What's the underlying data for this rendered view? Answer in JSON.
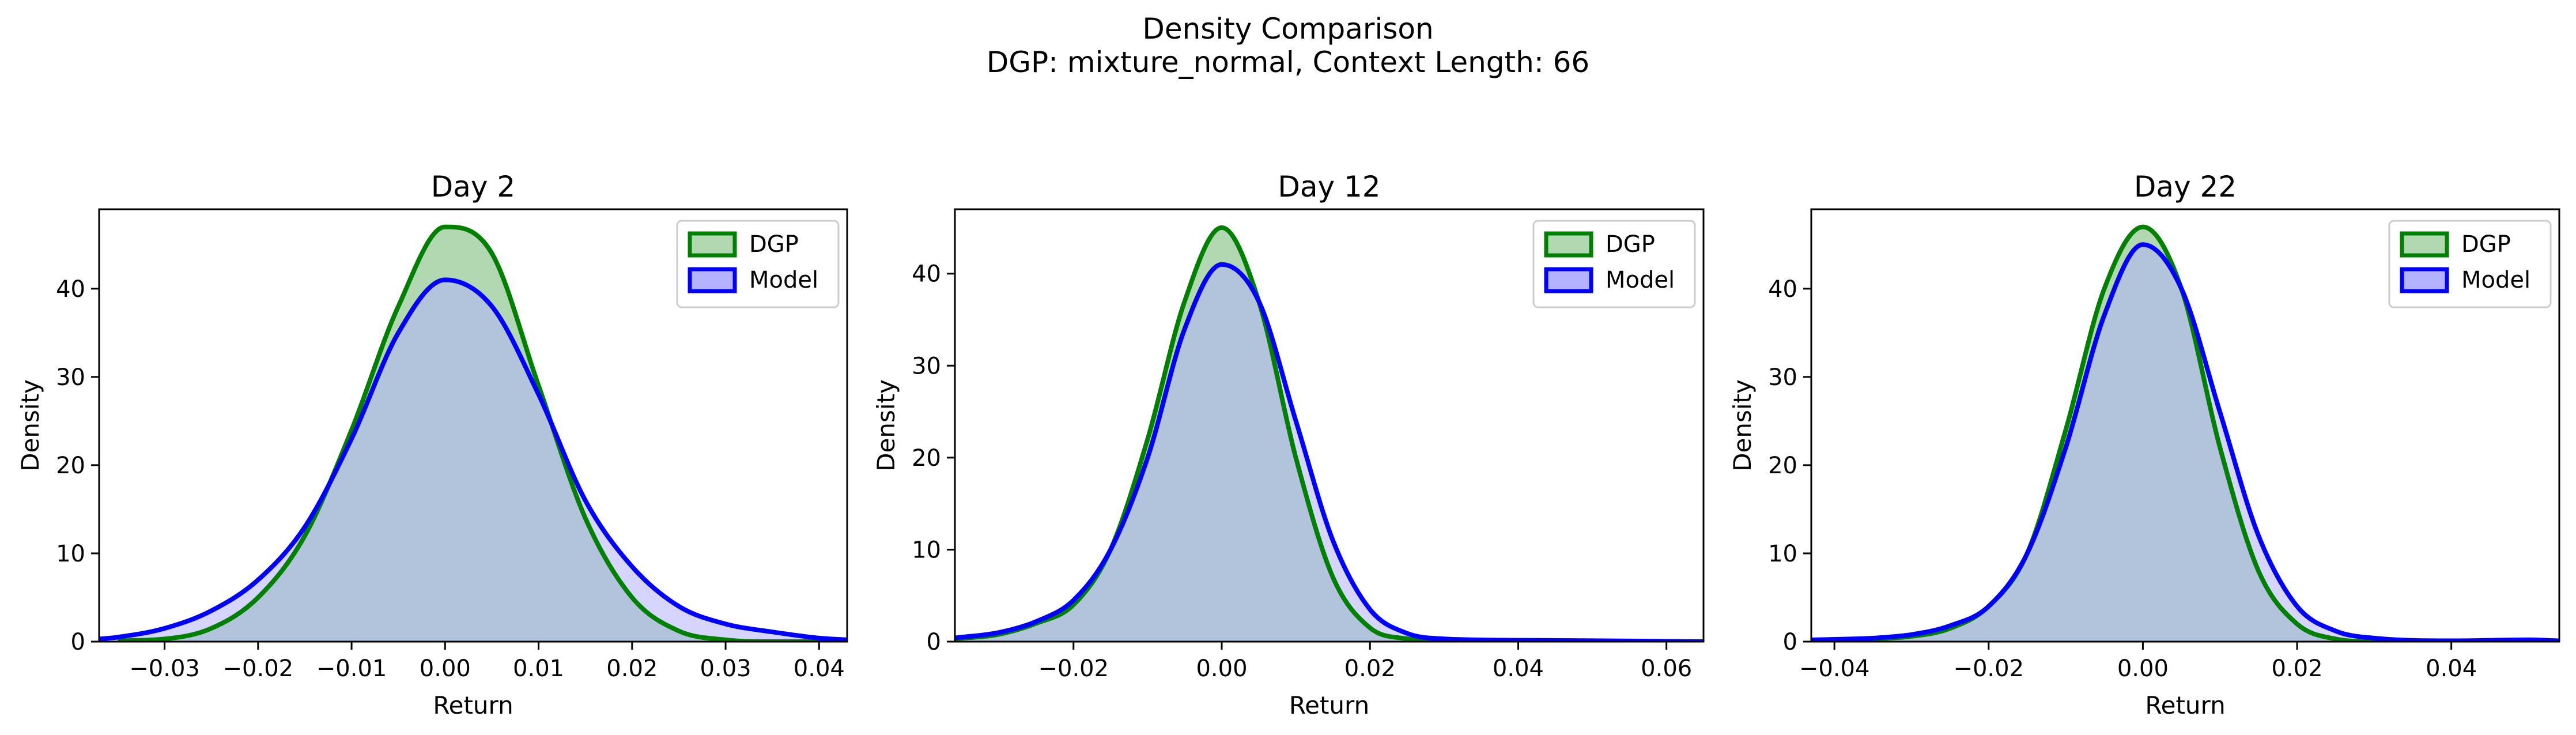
{
  "figure": {
    "title_line1": "Density Comparison",
    "title_line2": "DGP: mixture_normal, Context Length: 66"
  },
  "colors": {
    "dgp_line": "#008000",
    "dgp_fill": "#b2d8b2",
    "model_line": "#0000ff",
    "model_fill": "#b3b3ff",
    "overlap_fill": "#7d99c8"
  },
  "chart_data": [
    {
      "type": "area",
      "title": "Day 2",
      "xlabel": "Return",
      "ylabel": "Density",
      "xlim": [
        -0.037,
        0.043
      ],
      "ylim": [
        0,
        49
      ],
      "xticks": [
        -0.03,
        -0.02,
        -0.01,
        0.0,
        0.01,
        0.02,
        0.03,
        0.04
      ],
      "xtick_labels": [
        "−0.03",
        "−0.02",
        "−0.01",
        "0.00",
        "0.01",
        "0.02",
        "0.03",
        "0.04"
      ],
      "yticks": [
        0,
        10,
        20,
        30,
        40
      ],
      "ytick_labels": [
        "0",
        "10",
        "20",
        "30",
        "40"
      ],
      "legend": {
        "position": "top-right",
        "entries": [
          "DGP",
          "Model"
        ]
      },
      "series": [
        {
          "name": "DGP",
          "x": [
            -0.035,
            -0.03,
            -0.025,
            -0.02,
            -0.015,
            -0.01,
            -0.005,
            0.0,
            0.005,
            0.01,
            0.015,
            0.02,
            0.025,
            0.03,
            0.035,
            0.04,
            0.043
          ],
          "values": [
            0.1,
            0.3,
            1.5,
            5.0,
            12.0,
            24.0,
            38.0,
            47.0,
            44.0,
            29.0,
            14.0,
            5.0,
            1.2,
            0.2,
            0.0,
            0.0,
            0.0
          ]
        },
        {
          "name": "Model",
          "x": [
            -0.037,
            -0.035,
            -0.03,
            -0.025,
            -0.02,
            -0.015,
            -0.01,
            -0.005,
            0.0,
            0.005,
            0.01,
            0.015,
            0.02,
            0.025,
            0.03,
            0.035,
            0.04,
            0.043
          ],
          "values": [
            0.3,
            0.5,
            1.5,
            3.5,
            7.0,
            13.0,
            23.0,
            35.0,
            41.0,
            38.0,
            28.0,
            16.0,
            8.5,
            4.0,
            2.0,
            1.1,
            0.4,
            0.2
          ]
        }
      ]
    },
    {
      "type": "area",
      "title": "Day 12",
      "xlabel": "Return",
      "ylabel": "Density",
      "xlim": [
        -0.036,
        0.065
      ],
      "ylim": [
        0,
        47
      ],
      "xticks": [
        -0.02,
        0.0,
        0.02,
        0.04,
        0.06
      ],
      "xtick_labels": [
        "−0.02",
        "0.00",
        "0.02",
        "0.04",
        "0.06"
      ],
      "yticks": [
        0,
        10,
        20,
        30,
        40
      ],
      "ytick_labels": [
        "0",
        "10",
        "20",
        "30",
        "40"
      ],
      "legend": {
        "position": "top-right",
        "entries": [
          "DGP",
          "Model"
        ]
      },
      "series": [
        {
          "name": "DGP",
          "x": [
            -0.036,
            -0.03,
            -0.025,
            -0.02,
            -0.015,
            -0.01,
            -0.005,
            0.0,
            0.005,
            0.01,
            0.015,
            0.02,
            0.025,
            0.03,
            0.04,
            0.05,
            0.065
          ],
          "values": [
            0.3,
            0.8,
            2.0,
            4.0,
            10.0,
            22.0,
            37.0,
            45.0,
            37.0,
            20.0,
            7.0,
            1.5,
            0.3,
            0.0,
            0.0,
            0.0,
            0.0
          ]
        },
        {
          "name": "Model",
          "x": [
            -0.036,
            -0.03,
            -0.025,
            -0.02,
            -0.015,
            -0.01,
            -0.005,
            0.0,
            0.005,
            0.01,
            0.015,
            0.02,
            0.025,
            0.03,
            0.04,
            0.05,
            0.065
          ],
          "values": [
            0.4,
            1.0,
            2.2,
            4.5,
            10.0,
            20.0,
            34.0,
            41.0,
            37.0,
            24.0,
            11.0,
            3.5,
            0.9,
            0.3,
            0.15,
            0.1,
            0.0
          ]
        }
      ]
    },
    {
      "type": "area",
      "title": "Day 22",
      "xlabel": "Return",
      "ylabel": "Density",
      "xlim": [
        -0.043,
        0.054
      ],
      "ylim": [
        0,
        49
      ],
      "xticks": [
        -0.04,
        -0.02,
        0.0,
        0.02,
        0.04
      ],
      "xtick_labels": [
        "−0.04",
        "−0.02",
        "0.00",
        "0.02",
        "0.04"
      ],
      "yticks": [
        0,
        10,
        20,
        30,
        40
      ],
      "ytick_labels": [
        "0",
        "10",
        "20",
        "30",
        "40"
      ],
      "legend": {
        "position": "top-right",
        "entries": [
          "DGP",
          "Model"
        ]
      },
      "series": [
        {
          "name": "DGP",
          "x": [
            -0.043,
            -0.035,
            -0.03,
            -0.025,
            -0.02,
            -0.015,
            -0.01,
            -0.005,
            0.0,
            0.005,
            0.01,
            0.015,
            0.02,
            0.025,
            0.03,
            0.04,
            0.054
          ],
          "values": [
            0.1,
            0.3,
            0.6,
            1.5,
            4.0,
            10.0,
            24.0,
            40.0,
            47.0,
            40.0,
            22.0,
            8.0,
            2.0,
            0.3,
            0.0,
            0.0,
            0.0
          ]
        },
        {
          "name": "Model",
          "x": [
            -0.043,
            -0.035,
            -0.03,
            -0.025,
            -0.02,
            -0.015,
            -0.01,
            -0.005,
            0.0,
            0.005,
            0.01,
            0.015,
            0.02,
            0.025,
            0.03,
            0.04,
            0.05,
            0.054
          ],
          "values": [
            0.2,
            0.4,
            0.8,
            1.8,
            4.0,
            10.0,
            22.0,
            37.0,
            45.0,
            40.0,
            26.0,
            12.0,
            4.0,
            1.2,
            0.4,
            0.1,
            0.2,
            0.1
          ]
        }
      ]
    }
  ]
}
